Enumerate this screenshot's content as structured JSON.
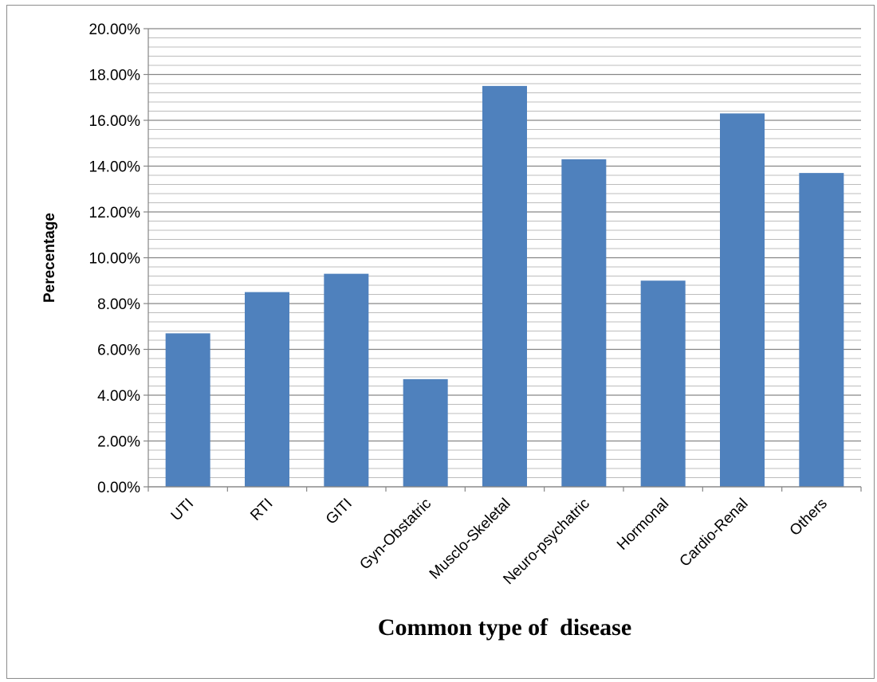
{
  "chart_data": {
    "type": "bar",
    "categories": [
      "UTI",
      "RTI",
      "GITI",
      "Gyn-Obstatric",
      "Musclo-Skeletal",
      "Neuro-psychatric",
      "Hormonal",
      "Cardio-Renal",
      "Others"
    ],
    "values": [
      6.7,
      8.5,
      9.3,
      4.7,
      17.5,
      14.3,
      9.0,
      16.3,
      13.7
    ],
    "ylim": [
      0,
      20
    ],
    "yticks": [
      "0.00%",
      "2.00%",
      "4.00%",
      "6.00%",
      "8.00%",
      "10.00%",
      "12.00%",
      "14.00%",
      "16.00%",
      "18.00%",
      "20.00%"
    ],
    "ylabel": "Perecentage",
    "xlabel": "Common type of  disease",
    "title": "",
    "bar_color": "#4f81bd",
    "grid": true
  }
}
